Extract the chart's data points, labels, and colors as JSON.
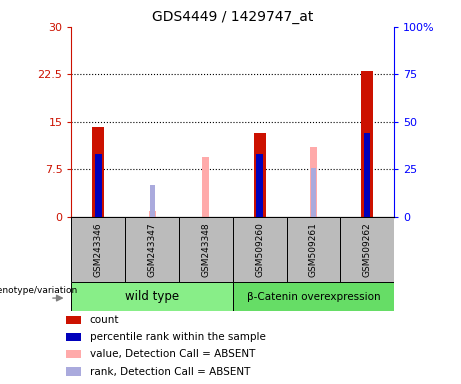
{
  "title": "GDS4449 / 1429747_at",
  "samples": [
    "GSM243346",
    "GSM243347",
    "GSM243348",
    "GSM509260",
    "GSM509261",
    "GSM509262"
  ],
  "count_values": [
    14.2,
    0.3,
    0.0,
    13.3,
    0.3,
    23.0
  ],
  "rank_values": [
    33.0,
    0.0,
    0.0,
    33.0,
    31.0,
    44.0
  ],
  "absent_value_values": [
    0.0,
    1.0,
    9.5,
    0.0,
    11.0,
    0.0
  ],
  "absent_rank_values": [
    0.0,
    17.0,
    0.0,
    0.0,
    26.0,
    0.0
  ],
  "detection_absent": [
    false,
    true,
    true,
    false,
    true,
    false
  ],
  "ylim_left": [
    0,
    30
  ],
  "ylim_right": [
    0,
    100
  ],
  "yticks_left": [
    0,
    7.5,
    15,
    22.5,
    30
  ],
  "yticks_right": [
    0,
    25,
    50,
    75,
    100
  ],
  "ytick_labels_left": [
    "0",
    "7.5",
    "15",
    "22.5",
    "30"
  ],
  "ytick_labels_right": [
    "0",
    "25",
    "50",
    "75",
    "100%"
  ],
  "color_count": "#cc1100",
  "color_rank": "#0000bb",
  "color_absent_value": "#ffaaaa",
  "color_absent_rank": "#aaaadd",
  "color_group_wildtype": "#88ee88",
  "color_group_beta": "#66dd66",
  "background_plot": "#ffffff",
  "background_sample": "#bbbbbb",
  "legend_items": [
    "count",
    "percentile rank within the sample",
    "value, Detection Call = ABSENT",
    "rank, Detection Call = ABSENT"
  ],
  "legend_colors": [
    "#cc1100",
    "#0000bb",
    "#ffaaaa",
    "#aaaadd"
  ]
}
